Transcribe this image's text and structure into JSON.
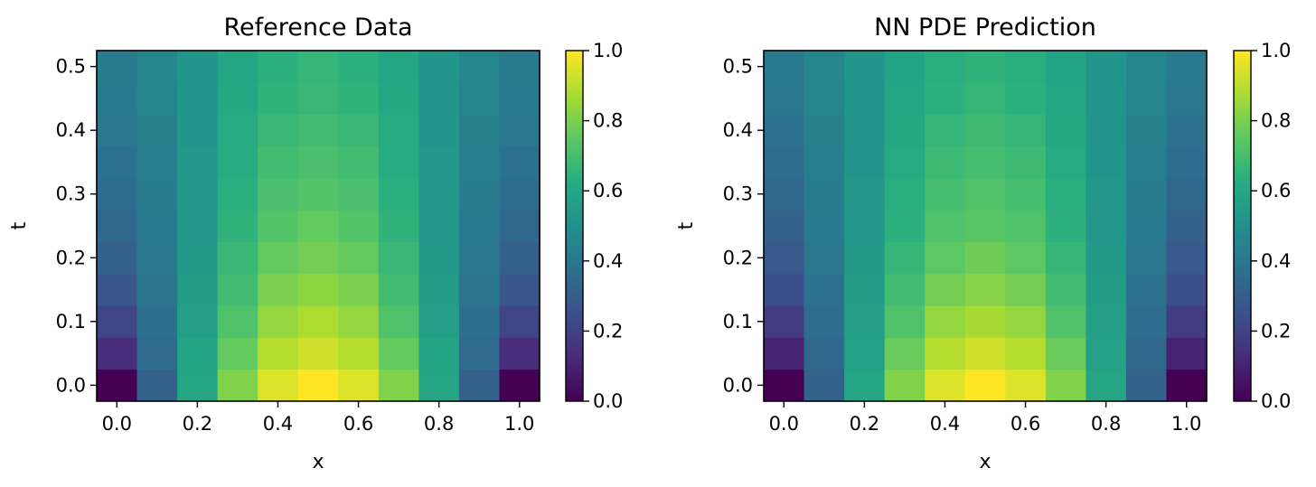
{
  "chart_data": [
    {
      "type": "heatmap",
      "title": "Reference Data",
      "xlabel": "x",
      "ylabel": "t",
      "x": [
        0.0,
        0.1,
        0.2,
        0.3,
        0.4,
        0.5,
        0.6,
        0.7,
        0.8,
        0.9,
        1.0
      ],
      "y": [
        0.0,
        0.05,
        0.1,
        0.15,
        0.2,
        0.25,
        0.3,
        0.35,
        0.4,
        0.45,
        0.5
      ],
      "xlim": [
        -0.05,
        1.05
      ],
      "ylim": [
        -0.025,
        0.525
      ],
      "xticks": [
        "0.0",
        "0.2",
        "0.4",
        "0.6",
        "0.8",
        "1.0"
      ],
      "yticks": [
        "0.0",
        "0.1",
        "0.2",
        "0.3",
        "0.4",
        "0.5"
      ],
      "colormap": "viridis",
      "clim": [
        0.0,
        1.0
      ],
      "colorbar_ticks": [
        "0.0",
        "0.2",
        "0.4",
        "0.6",
        "0.8",
        "1.0"
      ],
      "values": [
        [
          0.0,
          0.31,
          0.59,
          0.81,
          0.95,
          1.0,
          0.95,
          0.81,
          0.59,
          0.31,
          0.0
        ],
        [
          0.13,
          0.35,
          0.58,
          0.76,
          0.89,
          0.93,
          0.89,
          0.76,
          0.58,
          0.35,
          0.13
        ],
        [
          0.21,
          0.37,
          0.56,
          0.72,
          0.84,
          0.88,
          0.84,
          0.72,
          0.56,
          0.37,
          0.21
        ],
        [
          0.27,
          0.39,
          0.55,
          0.69,
          0.8,
          0.83,
          0.8,
          0.69,
          0.55,
          0.39,
          0.27
        ],
        [
          0.31,
          0.4,
          0.54,
          0.67,
          0.76,
          0.79,
          0.76,
          0.67,
          0.54,
          0.4,
          0.31
        ],
        [
          0.34,
          0.41,
          0.53,
          0.65,
          0.73,
          0.76,
          0.73,
          0.65,
          0.53,
          0.41,
          0.34
        ],
        [
          0.36,
          0.42,
          0.53,
          0.63,
          0.71,
          0.73,
          0.71,
          0.63,
          0.53,
          0.42,
          0.36
        ],
        [
          0.38,
          0.43,
          0.53,
          0.62,
          0.69,
          0.71,
          0.69,
          0.62,
          0.53,
          0.43,
          0.38
        ],
        [
          0.4,
          0.44,
          0.52,
          0.61,
          0.67,
          0.69,
          0.67,
          0.61,
          0.52,
          0.44,
          0.4
        ],
        [
          0.41,
          0.45,
          0.52,
          0.6,
          0.65,
          0.67,
          0.65,
          0.6,
          0.52,
          0.45,
          0.41
        ],
        [
          0.42,
          0.46,
          0.52,
          0.59,
          0.64,
          0.66,
          0.64,
          0.59,
          0.52,
          0.46,
          0.42
        ]
      ]
    },
    {
      "type": "heatmap",
      "title": "NN PDE Prediction",
      "xlabel": "x",
      "ylabel": "t",
      "x": [
        0.0,
        0.1,
        0.2,
        0.3,
        0.4,
        0.5,
        0.6,
        0.7,
        0.8,
        0.9,
        1.0
      ],
      "y": [
        0.0,
        0.05,
        0.1,
        0.15,
        0.2,
        0.25,
        0.3,
        0.35,
        0.4,
        0.45,
        0.5
      ],
      "xlim": [
        -0.05,
        1.05
      ],
      "ylim": [
        -0.025,
        0.525
      ],
      "xticks": [
        "0.0",
        "0.2",
        "0.4",
        "0.6",
        "0.8",
        "1.0"
      ],
      "yticks": [
        "0.0",
        "0.1",
        "0.2",
        "0.3",
        "0.4",
        "0.5"
      ],
      "colormap": "viridis",
      "clim": [
        0.0,
        1.0
      ],
      "colorbar_ticks": [
        "0.0",
        "0.2",
        "0.4",
        "0.6",
        "0.8",
        "1.0"
      ],
      "values": [
        [
          0.0,
          0.31,
          0.59,
          0.81,
          0.95,
          1.0,
          0.95,
          0.81,
          0.59,
          0.31,
          0.0
        ],
        [
          0.1,
          0.34,
          0.57,
          0.77,
          0.89,
          0.93,
          0.89,
          0.77,
          0.57,
          0.34,
          0.1
        ],
        [
          0.18,
          0.36,
          0.56,
          0.72,
          0.84,
          0.87,
          0.84,
          0.72,
          0.56,
          0.36,
          0.18
        ],
        [
          0.24,
          0.38,
          0.55,
          0.69,
          0.79,
          0.82,
          0.79,
          0.69,
          0.55,
          0.38,
          0.24
        ],
        [
          0.28,
          0.4,
          0.54,
          0.66,
          0.75,
          0.78,
          0.75,
          0.66,
          0.54,
          0.4,
          0.28
        ],
        [
          0.31,
          0.41,
          0.53,
          0.64,
          0.72,
          0.74,
          0.72,
          0.64,
          0.53,
          0.41,
          0.31
        ],
        [
          0.34,
          0.42,
          0.53,
          0.63,
          0.7,
          0.72,
          0.7,
          0.63,
          0.53,
          0.42,
          0.34
        ],
        [
          0.36,
          0.43,
          0.52,
          0.61,
          0.68,
          0.7,
          0.68,
          0.61,
          0.52,
          0.43,
          0.36
        ],
        [
          0.38,
          0.44,
          0.52,
          0.6,
          0.66,
          0.68,
          0.66,
          0.6,
          0.52,
          0.44,
          0.38
        ],
        [
          0.4,
          0.45,
          0.52,
          0.59,
          0.64,
          0.66,
          0.64,
          0.59,
          0.52,
          0.45,
          0.4
        ],
        [
          0.41,
          0.46,
          0.52,
          0.58,
          0.63,
          0.65,
          0.63,
          0.58,
          0.52,
          0.46,
          0.41
        ]
      ]
    }
  ]
}
